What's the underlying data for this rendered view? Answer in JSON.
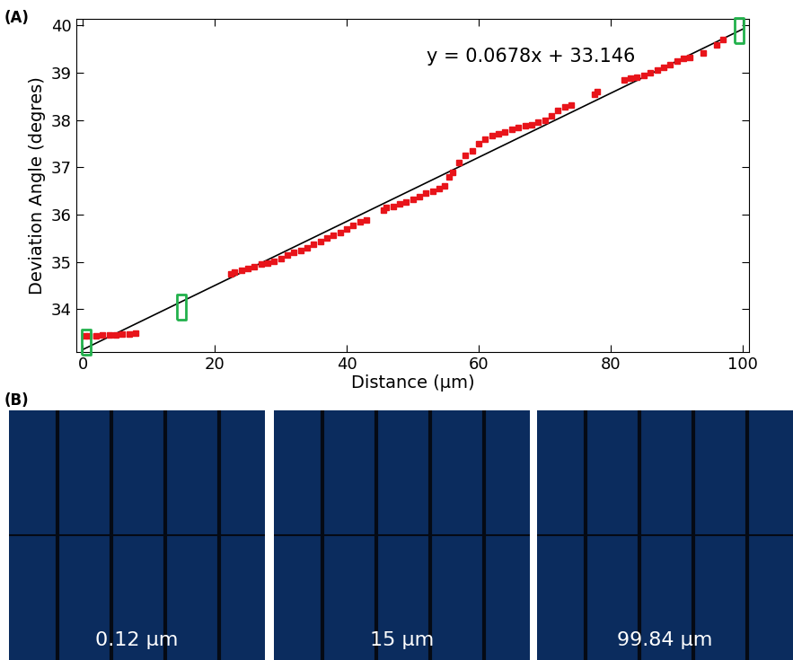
{
  "chart_data": {
    "type": "scatter",
    "panel_label": "(A)",
    "x_label": "Distance (µm)",
    "y_label": "Deviation Angle (degres)",
    "annotation": "y = 0.0678x + 33.146",
    "fit": {
      "slope": 0.0678,
      "intercept": 33.146,
      "color": "#000000"
    },
    "x": [
      0.2,
      1,
      2,
      3,
      4,
      5,
      6,
      7,
      8,
      22.5,
      23,
      24,
      25,
      26,
      27,
      28,
      29,
      30,
      31,
      32,
      33,
      34,
      35,
      36,
      37,
      38,
      39,
      40,
      41,
      42,
      43,
      45.5,
      46,
      47,
      48,
      49,
      50,
      51,
      52,
      53,
      54,
      54.8,
      55.5,
      56,
      57,
      58,
      59,
      60,
      61,
      62,
      63,
      64,
      65,
      66,
      67,
      68,
      69,
      70,
      71,
      72,
      73,
      74,
      77.5,
      78,
      82,
      83,
      84,
      85,
      86,
      87,
      88,
      89,
      90,
      91,
      92,
      94,
      96,
      97
    ],
    "values": [
      33.43,
      33.44,
      33.44,
      33.45,
      33.45,
      33.46,
      33.47,
      33.48,
      33.5,
      34.75,
      34.78,
      34.82,
      34.86,
      34.9,
      34.95,
      34.98,
      35.02,
      35.08,
      35.15,
      35.2,
      35.25,
      35.3,
      35.37,
      35.43,
      35.5,
      35.57,
      35.63,
      35.7,
      35.78,
      35.85,
      35.88,
      36.1,
      36.15,
      36.18,
      36.22,
      36.27,
      36.32,
      36.38,
      36.45,
      36.5,
      36.55,
      36.6,
      36.8,
      36.9,
      37.1,
      37.25,
      37.35,
      37.5,
      37.6,
      37.68,
      37.72,
      37.75,
      37.8,
      37.85,
      37.88,
      37.9,
      37.95,
      38.0,
      38.1,
      38.2,
      38.28,
      38.32,
      38.55,
      38.6,
      38.85,
      38.88,
      38.9,
      38.95,
      39.0,
      39.05,
      39.12,
      39.17,
      39.25,
      39.3,
      39.33,
      39.42,
      39.6,
      39.7
    ],
    "color": "#e8141a",
    "marker": "square",
    "highlights": {
      "x": [
        0.5,
        15,
        99.5
      ],
      "y": [
        33.3,
        34.05,
        39.9
      ],
      "color": "#22b14c"
    },
    "xlim": [
      -1,
      101
    ],
    "ylim": [
      33.1,
      40.15
    ],
    "xticks": [
      0,
      20,
      40,
      60,
      80,
      100
    ],
    "yticks": [
      34,
      35,
      36,
      37,
      38,
      39,
      40
    ]
  },
  "images": {
    "panel_label": "(B)",
    "labels": [
      "0.12 µm",
      "15 µm",
      "99.84 µm"
    ]
  }
}
